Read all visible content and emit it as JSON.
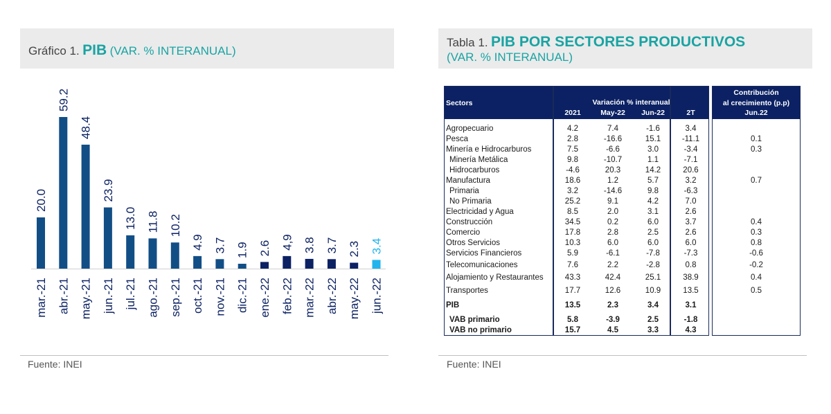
{
  "left_panel": {
    "prefix": "Gráfico 1.",
    "title": "PIB",
    "subtitle": "(VAR. % INTERANUAL)",
    "source": "Fuente: INEI"
  },
  "right_panel": {
    "prefix": "Tabla 1.",
    "title": "PIB POR SECTORES PRODUCTIVOS",
    "subtitle": "(VAR. % INTERANUAL)",
    "source": "Fuente: INEI"
  },
  "colors": {
    "bar_2021": "#124e86",
    "bar_2022": "#0b2163",
    "bar_highlight": "#22b4ec",
    "header_fill": "#0b2163",
    "title_accent": "#1aa3a3"
  },
  "chart_data": {
    "type": "bar",
    "title": "PIB",
    "categories": [
      "mar.-21",
      "abr.-21",
      "may.-21",
      "jun.-21",
      "jul.-21",
      "ago.-21",
      "sep.-21",
      "oct.-21",
      "nov.-21",
      "dic.-21",
      "ene.-22",
      "feb.-22",
      "mar.-22",
      "abr.-22",
      "may.-22",
      "jun.-22"
    ],
    "values": [
      20.0,
      59.2,
      48.4,
      23.9,
      13.0,
      11.8,
      10.2,
      4.9,
      3.7,
      1.9,
      2.6,
      4.9,
      3.8,
      3.7,
      2.3,
      3.4
    ],
    "labels": [
      "20.0",
      "59.2",
      "48.4",
      "23.9",
      "13.0",
      "11.8",
      "10.2",
      "4.9",
      "3.7",
      "1.9",
      "2.6",
      "4,9",
      "3.8",
      "3.7",
      "2.3",
      "3.4"
    ],
    "highlight_index": 15,
    "ylim": [
      0,
      59.2
    ]
  },
  "table": {
    "header": {
      "sectors": "Sectors",
      "variation": "Variación % interanual",
      "cols": [
        "2021",
        "May-22",
        "Jun-22",
        "2T"
      ],
      "contrib_line1": "Contribución",
      "contrib_line2": "al crecimiento (p.p)",
      "contrib_col": "Jun.22"
    },
    "rows": [
      {
        "label": "Agropecuario",
        "indent": 0,
        "bold": false,
        "v": [
          "4.2",
          "7.4",
          "-1.6",
          "3.4"
        ],
        "c": ""
      },
      {
        "label": "Pesca",
        "indent": 0,
        "bold": false,
        "v": [
          "2.8",
          "-16.6",
          "15.1",
          "-11.1"
        ],
        "c": "0.1"
      },
      {
        "label": "Minería e Hidrocarburos",
        "indent": 0,
        "bold": false,
        "v": [
          "7.5",
          "-6.6",
          "3.0",
          "-3.4"
        ],
        "c": "0.3"
      },
      {
        "label": "Minería Metálica",
        "indent": 1,
        "bold": false,
        "v": [
          "9.8",
          "-10.7",
          "1.1",
          "-7.1"
        ],
        "c": ""
      },
      {
        "label": "Hidrocarburos",
        "indent": 1,
        "bold": false,
        "v": [
          "-4.6",
          "20.3",
          "14.2",
          "20.6"
        ],
        "c": ""
      },
      {
        "label": "Manufactura",
        "indent": 0,
        "bold": false,
        "v": [
          "18.6",
          "1.2",
          "5.7",
          "3.2"
        ],
        "c": "0.7"
      },
      {
        "label": "Primaria",
        "indent": 1,
        "bold": false,
        "v": [
          "3.2",
          "-14.6",
          "9.8",
          "-6.3"
        ],
        "c": ""
      },
      {
        "label": "No Primaria",
        "indent": 1,
        "bold": false,
        "v": [
          "25.2",
          "9.1",
          "4.2",
          "7.0"
        ],
        "c": ""
      },
      {
        "label": "Electricidad y Agua",
        "indent": 0,
        "bold": false,
        "v": [
          "8.5",
          "2.0",
          "3.1",
          "2.6"
        ],
        "c": ""
      },
      {
        "label": "Construcción",
        "indent": 0,
        "bold": false,
        "v": [
          "34.5",
          "0.2",
          "6.0",
          "3.7"
        ],
        "c": "0.4"
      },
      {
        "label": "Comercio",
        "indent": 0,
        "bold": false,
        "v": [
          "17.8",
          "2.8",
          "2.5",
          "2.6"
        ],
        "c": "0.3"
      },
      {
        "label": "Otros Servicios",
        "indent": 0,
        "bold": false,
        "v": [
          "10.3",
          "6.0",
          "6.0",
          "6.0"
        ],
        "c": "0.8"
      },
      {
        "label": "Servicios Financieros",
        "indent": 0,
        "bold": false,
        "v": [
          "5.9",
          "-6.1",
          "-7.8",
          "-7.3"
        ],
        "c": "-0.6"
      },
      {
        "label": "Telecomunicaciones",
        "indent": 0,
        "bold": false,
        "v": [
          "7.6",
          "2.2",
          "-2.8",
          "0.8"
        ],
        "c": "-0.2"
      },
      {
        "label": "Alojamiento y Restaurantes",
        "indent": 0,
        "bold": false,
        "v": [
          "43.3",
          "42.4",
          "25.1",
          "38.9"
        ],
        "c": "0.4"
      },
      {
        "label": "Transportes",
        "indent": 0,
        "bold": false,
        "v": [
          "17.7",
          "12.6",
          "10.9",
          "13.5"
        ],
        "c": "0.5"
      },
      {
        "label": "PIB",
        "indent": 0,
        "bold": true,
        "v": [
          "13.5",
          "2.3",
          "3.4",
          "3.1"
        ],
        "c": ""
      },
      {
        "label": "VAB primario",
        "indent": 1,
        "bold": true,
        "v": [
          "5.8",
          "-3.9",
          "2.5",
          "-1.8"
        ],
        "c": ""
      },
      {
        "label": "VAB no primario",
        "indent": 1,
        "bold": true,
        "v": [
          "15.7",
          "4.5",
          "3.3",
          "4.3"
        ],
        "c": ""
      }
    ]
  }
}
